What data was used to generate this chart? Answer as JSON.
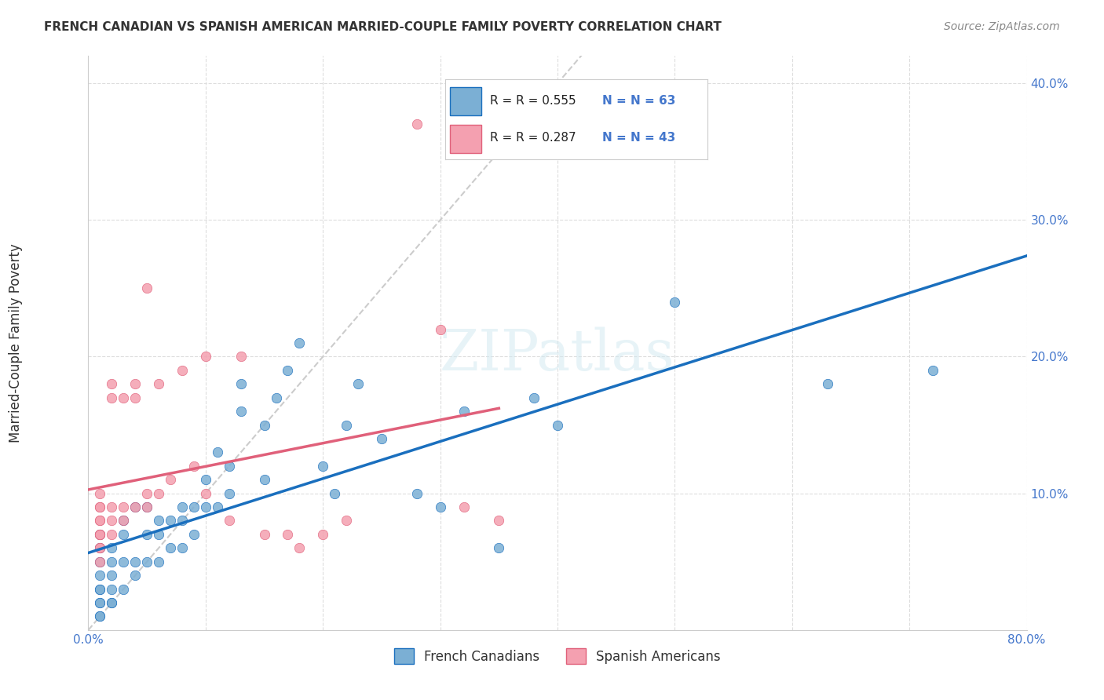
{
  "title": "FRENCH CANADIAN VS SPANISH AMERICAN MARRIED-COUPLE FAMILY POVERTY CORRELATION CHART",
  "source": "Source: ZipAtlas.com",
  "xlabel": "",
  "ylabel": "Married-Couple Family Poverty",
  "xlim": [
    0,
    0.8
  ],
  "ylim": [
    0,
    0.42
  ],
  "xticks": [
    0.0,
    0.1,
    0.2,
    0.3,
    0.4,
    0.5,
    0.6,
    0.7,
    0.8
  ],
  "yticks": [
    0.0,
    0.1,
    0.2,
    0.3,
    0.4
  ],
  "xtick_labels": [
    "0.0%",
    "",
    "",
    "",
    "",
    "",
    "",
    "",
    "80.0%"
  ],
  "ytick_labels": [
    "",
    "10.0%",
    "20.0%",
    "30.0%",
    "40.0%"
  ],
  "background_color": "#ffffff",
  "grid_color": "#dddddd",
  "watermark": "ZIPatlas",
  "legend_R1": "R = 0.555",
  "legend_N1": "N = 63",
  "legend_R2": "R = 0.287",
  "legend_N2": "N = 43",
  "blue_color": "#7bafd4",
  "blue_line_color": "#1a6fbe",
  "pink_color": "#f4a0b0",
  "pink_line_color": "#e0607a",
  "ref_line_color": "#cccccc",
  "blue_R": 0.555,
  "blue_N": 63,
  "pink_R": 0.287,
  "pink_N": 43,
  "blue_dots_x": [
    0.01,
    0.01,
    0.01,
    0.01,
    0.01,
    0.01,
    0.01,
    0.01,
    0.01,
    0.01,
    0.02,
    0.02,
    0.02,
    0.02,
    0.02,
    0.02,
    0.03,
    0.03,
    0.03,
    0.03,
    0.04,
    0.04,
    0.04,
    0.05,
    0.05,
    0.05,
    0.06,
    0.06,
    0.06,
    0.07,
    0.07,
    0.08,
    0.08,
    0.08,
    0.09,
    0.09,
    0.1,
    0.1,
    0.11,
    0.11,
    0.12,
    0.12,
    0.13,
    0.13,
    0.15,
    0.15,
    0.16,
    0.17,
    0.18,
    0.2,
    0.21,
    0.22,
    0.23,
    0.25,
    0.28,
    0.3,
    0.32,
    0.35,
    0.38,
    0.4,
    0.5,
    0.63,
    0.72
  ],
  "blue_dots_y": [
    0.01,
    0.01,
    0.02,
    0.02,
    0.03,
    0.03,
    0.04,
    0.05,
    0.06,
    0.07,
    0.02,
    0.02,
    0.03,
    0.04,
    0.05,
    0.06,
    0.03,
    0.05,
    0.07,
    0.08,
    0.04,
    0.05,
    0.09,
    0.05,
    0.07,
    0.09,
    0.05,
    0.07,
    0.08,
    0.06,
    0.08,
    0.06,
    0.08,
    0.09,
    0.07,
    0.09,
    0.09,
    0.11,
    0.09,
    0.13,
    0.1,
    0.12,
    0.16,
    0.18,
    0.11,
    0.15,
    0.17,
    0.19,
    0.21,
    0.12,
    0.1,
    0.15,
    0.18,
    0.14,
    0.1,
    0.09,
    0.16,
    0.06,
    0.17,
    0.15,
    0.24,
    0.18,
    0.19
  ],
  "pink_dots_x": [
    0.01,
    0.01,
    0.01,
    0.01,
    0.01,
    0.01,
    0.01,
    0.01,
    0.01,
    0.01,
    0.01,
    0.02,
    0.02,
    0.02,
    0.02,
    0.02,
    0.03,
    0.03,
    0.03,
    0.04,
    0.04,
    0.04,
    0.05,
    0.05,
    0.05,
    0.06,
    0.06,
    0.07,
    0.08,
    0.09,
    0.1,
    0.1,
    0.12,
    0.13,
    0.15,
    0.17,
    0.18,
    0.2,
    0.22,
    0.28,
    0.3,
    0.32,
    0.35
  ],
  "pink_dots_y": [
    0.05,
    0.06,
    0.06,
    0.07,
    0.07,
    0.07,
    0.08,
    0.08,
    0.09,
    0.09,
    0.1,
    0.07,
    0.08,
    0.09,
    0.17,
    0.18,
    0.08,
    0.09,
    0.17,
    0.09,
    0.17,
    0.18,
    0.09,
    0.1,
    0.25,
    0.1,
    0.18,
    0.11,
    0.19,
    0.12,
    0.1,
    0.2,
    0.08,
    0.2,
    0.07,
    0.07,
    0.06,
    0.07,
    0.08,
    0.37,
    0.22,
    0.09,
    0.08
  ]
}
